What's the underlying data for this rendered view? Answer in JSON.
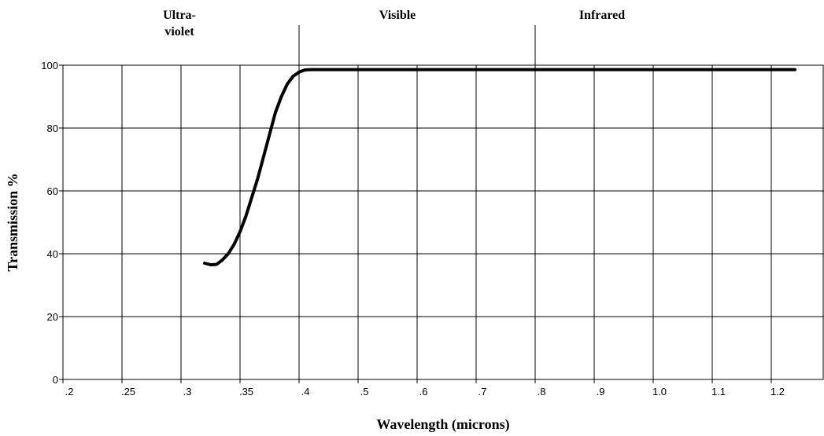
{
  "chart_data": {
    "type": "line",
    "title": "",
    "xlabel": "Wavelength (microns)",
    "ylabel": "Transmission %",
    "x_tick_labels": [
      ".2",
      ".25",
      ".3",
      ".35",
      ".4",
      ".5",
      ".6",
      ".7",
      ".8",
      ".9",
      "1.0",
      "1.1",
      "1.2"
    ],
    "y_ticks": [
      0,
      20,
      40,
      60,
      80,
      100
    ],
    "ylim": [
      0,
      100
    ],
    "grid": true,
    "regions": [
      {
        "label_line1": "Ultra-",
        "label_line2": "violet"
      },
      {
        "label_line1": "Visible",
        "label_line2": ""
      },
      {
        "label_line1": "Infrared",
        "label_line2": ""
      }
    ],
    "series": [
      {
        "x": [
          0.32,
          0.325,
          0.33,
          0.335,
          0.34,
          0.345,
          0.35,
          0.355,
          0.36,
          0.365,
          0.37,
          0.375,
          0.38,
          0.385,
          0.39,
          0.395,
          0.4,
          0.41,
          0.42,
          0.43,
          0.5,
          0.6,
          0.7,
          0.8,
          0.9,
          1.0,
          1.1,
          1.2,
          1.24
        ],
        "y": [
          37,
          36.5,
          36.6,
          38,
          40,
          43,
          47,
          52,
          58,
          64,
          71,
          78,
          85,
          90,
          94,
          96.5,
          97.8,
          98.5,
          98.6,
          98.6,
          98.6,
          98.6,
          98.6,
          98.6,
          98.6,
          98.6,
          98.6,
          98.6,
          98.6
        ]
      }
    ]
  }
}
